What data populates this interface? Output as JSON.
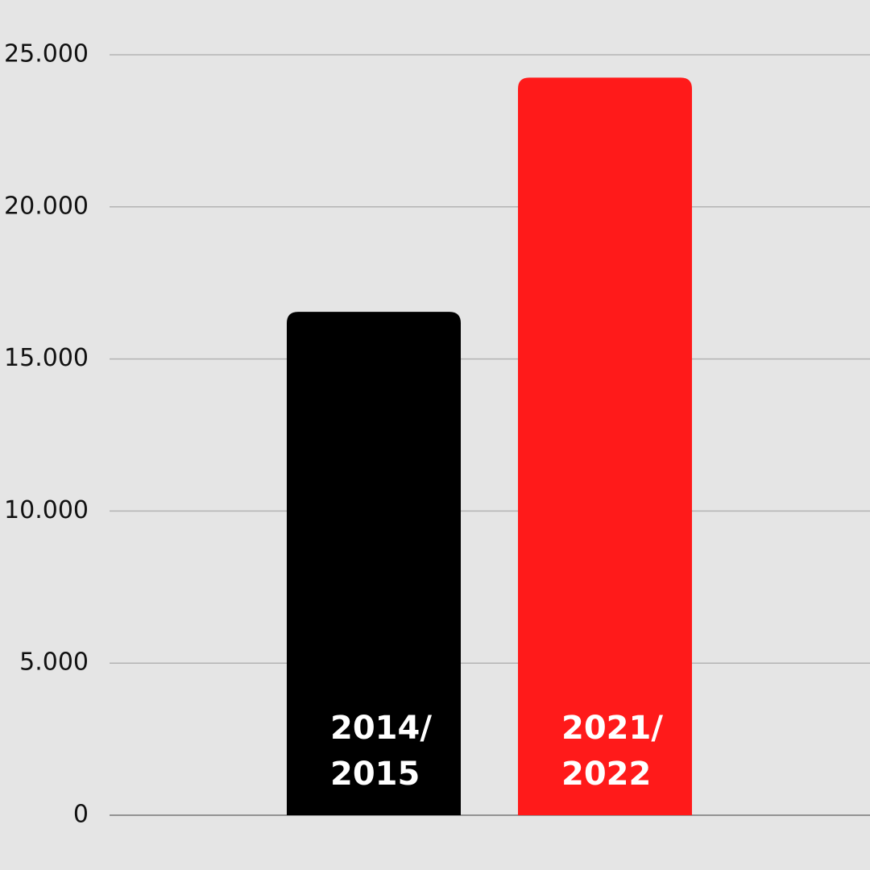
{
  "chart_data": {
    "type": "bar",
    "categories": [
      "2014/2015",
      "2021/2022"
    ],
    "values": [
      16550,
      24250
    ],
    "colors": [
      "#000000",
      "#ff1a1a"
    ],
    "ylim": [
      0,
      25000
    ],
    "yticks": [
      0,
      {
        "value": 5000,
        "label": "5.000"
      },
      {
        "value": 10000,
        "label": "10.000"
      },
      {
        "value": 15000,
        "label": "15.000"
      },
      {
        "value": 20000,
        "label": "20.000"
      },
      {
        "value": 25000,
        "label": "25.000"
      }
    ],
    "grid": true
  }
}
